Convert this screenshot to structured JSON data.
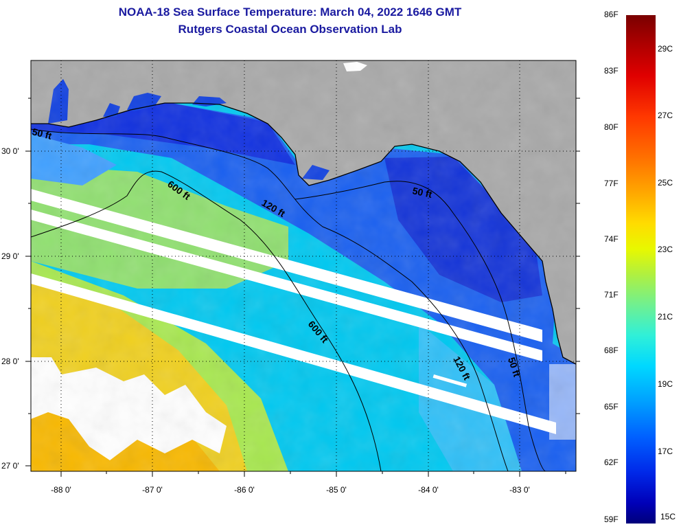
{
  "title": {
    "line1": "NOAA-18 Sea Surface Temperature:  March 04, 2022 1646 GMT",
    "line2": "Rutgers Coastal Ocean Observation Lab"
  },
  "map": {
    "latitude_labels": [
      "30 0'",
      "29 0'",
      "28 0'",
      "27 0'"
    ],
    "longitude_labels": [
      "-88 0'",
      "-87 0'",
      "-86 0'",
      "-85 0'",
      "-84 0'",
      "-83 0'"
    ],
    "isobath_labels": [
      {
        "text": "600 ft",
        "depth": "600"
      },
      {
        "text": "120 ft",
        "depth": "120"
      },
      {
        "text": "50 ft",
        "depth": "50"
      },
      {
        "text": "600 ft",
        "depth": "600"
      },
      {
        "text": "120 ft",
        "depth": "120"
      },
      {
        "text": "50 ft",
        "depth": "50"
      },
      {
        "text": "50 ft",
        "depth": "50"
      }
    ],
    "colors": {
      "land": "#a9a9a9",
      "cloud_gaps": "#ffffff",
      "cold_water": "#1540e0",
      "warm_water": "#f0c810",
      "title_color": "#1a1aa0"
    }
  },
  "colorbar": {
    "fahrenheit": [
      "86F",
      "83F",
      "80F",
      "77F",
      "74F",
      "71F",
      "68F",
      "65F",
      "62F",
      "59F"
    ],
    "celsius": [
      "29C",
      "27C",
      "25C",
      "23C",
      "21C",
      "19C",
      "17C",
      "15C"
    ]
  }
}
